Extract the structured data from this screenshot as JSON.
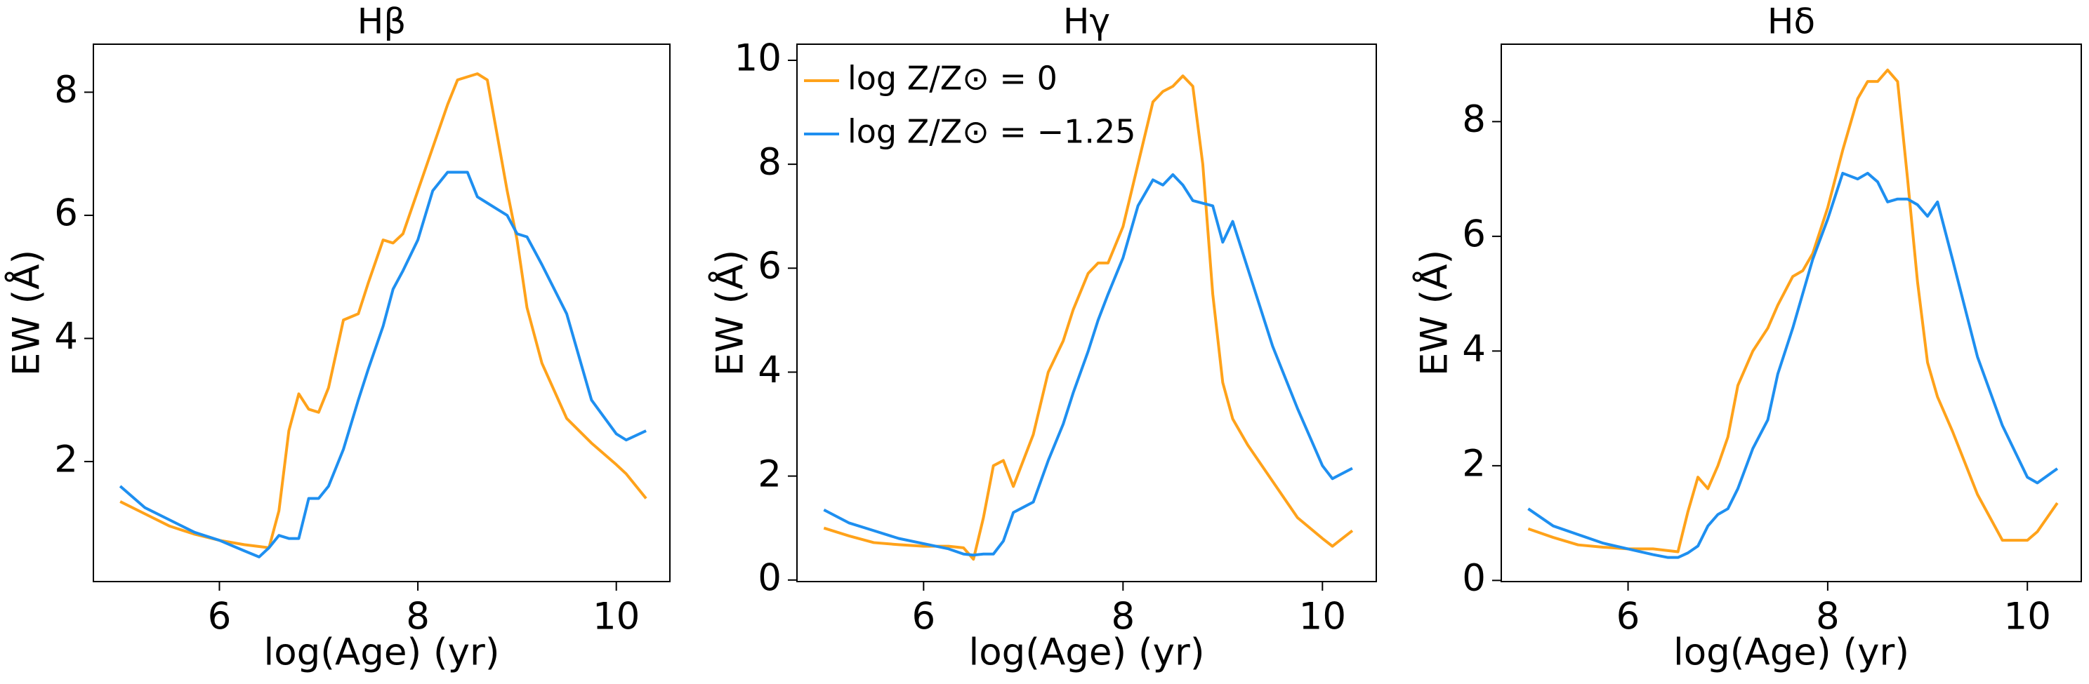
{
  "chart_data": [
    {
      "type": "line",
      "title": "Hβ",
      "xlabel": "log(Age) (yr)",
      "ylabel": "EW (Å)",
      "x": [
        5,
        5.25,
        5.5,
        5.75,
        6,
        6.25,
        6.4,
        6.5,
        6.6,
        6.7,
        6.8,
        6.9,
        7,
        7.1,
        7.25,
        7.4,
        7.5,
        7.65,
        7.75,
        7.85,
        8,
        8.15,
        8.3,
        8.4,
        8.5,
        8.6,
        8.7,
        8.8,
        8.9,
        9,
        9.1,
        9.25,
        9.5,
        9.75,
        10,
        10.1,
        10.3
      ],
      "series": [
        {
          "color": "#ffa21a",
          "values": [
            1.35,
            1.15,
            0.95,
            0.82,
            0.72,
            0.65,
            0.62,
            0.6,
            1.2,
            2.5,
            3.1,
            2.85,
            2.8,
            3.2,
            4.3,
            4.4,
            4.9,
            5.6,
            5.55,
            5.7,
            6.4,
            7.1,
            7.8,
            8.2,
            8.25,
            8.3,
            8.2,
            7.3,
            6.4,
            5.6,
            4.5,
            3.6,
            2.7,
            2.3,
            1.95,
            1.8,
            1.4
          ]
        },
        {
          "color": "#1e8ff0",
          "values": [
            1.6,
            1.25,
            1.05,
            0.85,
            0.72,
            0.55,
            0.45,
            0.6,
            0.8,
            0.75,
            0.75,
            1.4,
            1.4,
            1.6,
            2.2,
            3.0,
            3.5,
            4.2,
            4.8,
            5.1,
            5.6,
            6.4,
            6.7,
            6.7,
            6.7,
            6.3,
            6.2,
            6.1,
            6.0,
            5.7,
            5.65,
            5.2,
            4.4,
            3.0,
            2.45,
            2.35,
            2.5
          ]
        }
      ],
      "xlim": [
        4.73,
        10.54
      ],
      "ylim": [
        0.05,
        8.78
      ],
      "xticks": [
        6,
        8,
        10
      ],
      "yticks": [
        2,
        4,
        6,
        8
      ]
    },
    {
      "type": "line",
      "title": "Hγ",
      "xlabel": "log(Age) (yr)",
      "ylabel": "EW (Å)",
      "x": [
        5,
        5.25,
        5.5,
        5.75,
        6,
        6.25,
        6.4,
        6.5,
        6.6,
        6.7,
        6.8,
        6.9,
        7,
        7.1,
        7.25,
        7.4,
        7.5,
        7.65,
        7.75,
        7.85,
        8,
        8.15,
        8.3,
        8.4,
        8.5,
        8.6,
        8.7,
        8.8,
        8.9,
        9,
        9.1,
        9.25,
        9.5,
        9.75,
        10,
        10.1,
        10.3
      ],
      "series": [
        {
          "name": "log Z/Z⊙ = 0",
          "color": "#ffa21a",
          "values": [
            1.0,
            0.85,
            0.72,
            0.68,
            0.65,
            0.65,
            0.62,
            0.4,
            1.2,
            2.2,
            2.3,
            1.8,
            2.3,
            2.8,
            4.0,
            4.6,
            5.2,
            5.9,
            6.1,
            6.1,
            6.8,
            8.0,
            9.2,
            9.4,
            9.5,
            9.7,
            9.5,
            8.0,
            5.5,
            3.8,
            3.1,
            2.6,
            1.9,
            1.2,
            0.8,
            0.65,
            0.95
          ]
        },
        {
          "name": "log Z/Z⊙ = −1.25",
          "color": "#1e8ff0",
          "values": [
            1.35,
            1.1,
            0.95,
            0.8,
            0.7,
            0.6,
            0.5,
            0.48,
            0.5,
            0.5,
            0.75,
            1.3,
            1.4,
            1.5,
            2.3,
            3.0,
            3.6,
            4.4,
            5.0,
            5.5,
            6.2,
            7.2,
            7.7,
            7.6,
            7.8,
            7.6,
            7.3,
            7.25,
            7.2,
            6.5,
            6.9,
            6.0,
            4.5,
            3.3,
            2.2,
            1.95,
            2.15
          ]
        }
      ],
      "xlim": [
        4.73,
        10.54
      ],
      "ylim": [
        -0.03,
        10.31
      ],
      "xticks": [
        6,
        8,
        10
      ],
      "yticks": [
        0,
        2,
        4,
        6,
        8,
        10
      ],
      "legend": "upper left"
    },
    {
      "type": "line",
      "title": "Hδ",
      "xlabel": "log(Age) (yr)",
      "ylabel": "EW (Å)",
      "x": [
        5,
        5.25,
        5.5,
        5.75,
        6,
        6.25,
        6.4,
        6.5,
        6.6,
        6.7,
        6.8,
        6.9,
        7,
        7.1,
        7.25,
        7.4,
        7.5,
        7.65,
        7.75,
        7.85,
        8,
        8.15,
        8.3,
        8.4,
        8.5,
        8.6,
        8.7,
        8.8,
        8.9,
        9,
        9.1,
        9.25,
        9.5,
        9.75,
        10,
        10.1,
        10.3
      ],
      "series": [
        {
          "color": "#ffa21a",
          "values": [
            0.9,
            0.75,
            0.62,
            0.58,
            0.55,
            0.55,
            0.52,
            0.5,
            1.2,
            1.8,
            1.6,
            2.0,
            2.5,
            3.4,
            4.0,
            4.4,
            4.8,
            5.3,
            5.4,
            5.7,
            6.5,
            7.5,
            8.4,
            8.7,
            8.7,
            8.9,
            8.7,
            7.0,
            5.2,
            3.8,
            3.2,
            2.6,
            1.5,
            0.7,
            0.7,
            0.85,
            1.35
          ]
        },
        {
          "color": "#1e8ff0",
          "values": [
            1.25,
            0.95,
            0.8,
            0.65,
            0.55,
            0.45,
            0.4,
            0.4,
            0.48,
            0.6,
            0.95,
            1.15,
            1.25,
            1.6,
            2.3,
            2.8,
            3.6,
            4.4,
            5.0,
            5.6,
            6.3,
            7.1,
            7.0,
            7.1,
            6.95,
            6.6,
            6.65,
            6.65,
            6.55,
            6.35,
            6.6,
            5.6,
            3.9,
            2.7,
            1.8,
            1.7,
            1.95
          ]
        }
      ],
      "xlim": [
        4.73,
        10.54
      ],
      "ylim": [
        -0.02,
        9.35
      ],
      "xticks": [
        6,
        8,
        10
      ],
      "yticks": [
        0,
        2,
        4,
        6,
        8
      ]
    }
  ]
}
